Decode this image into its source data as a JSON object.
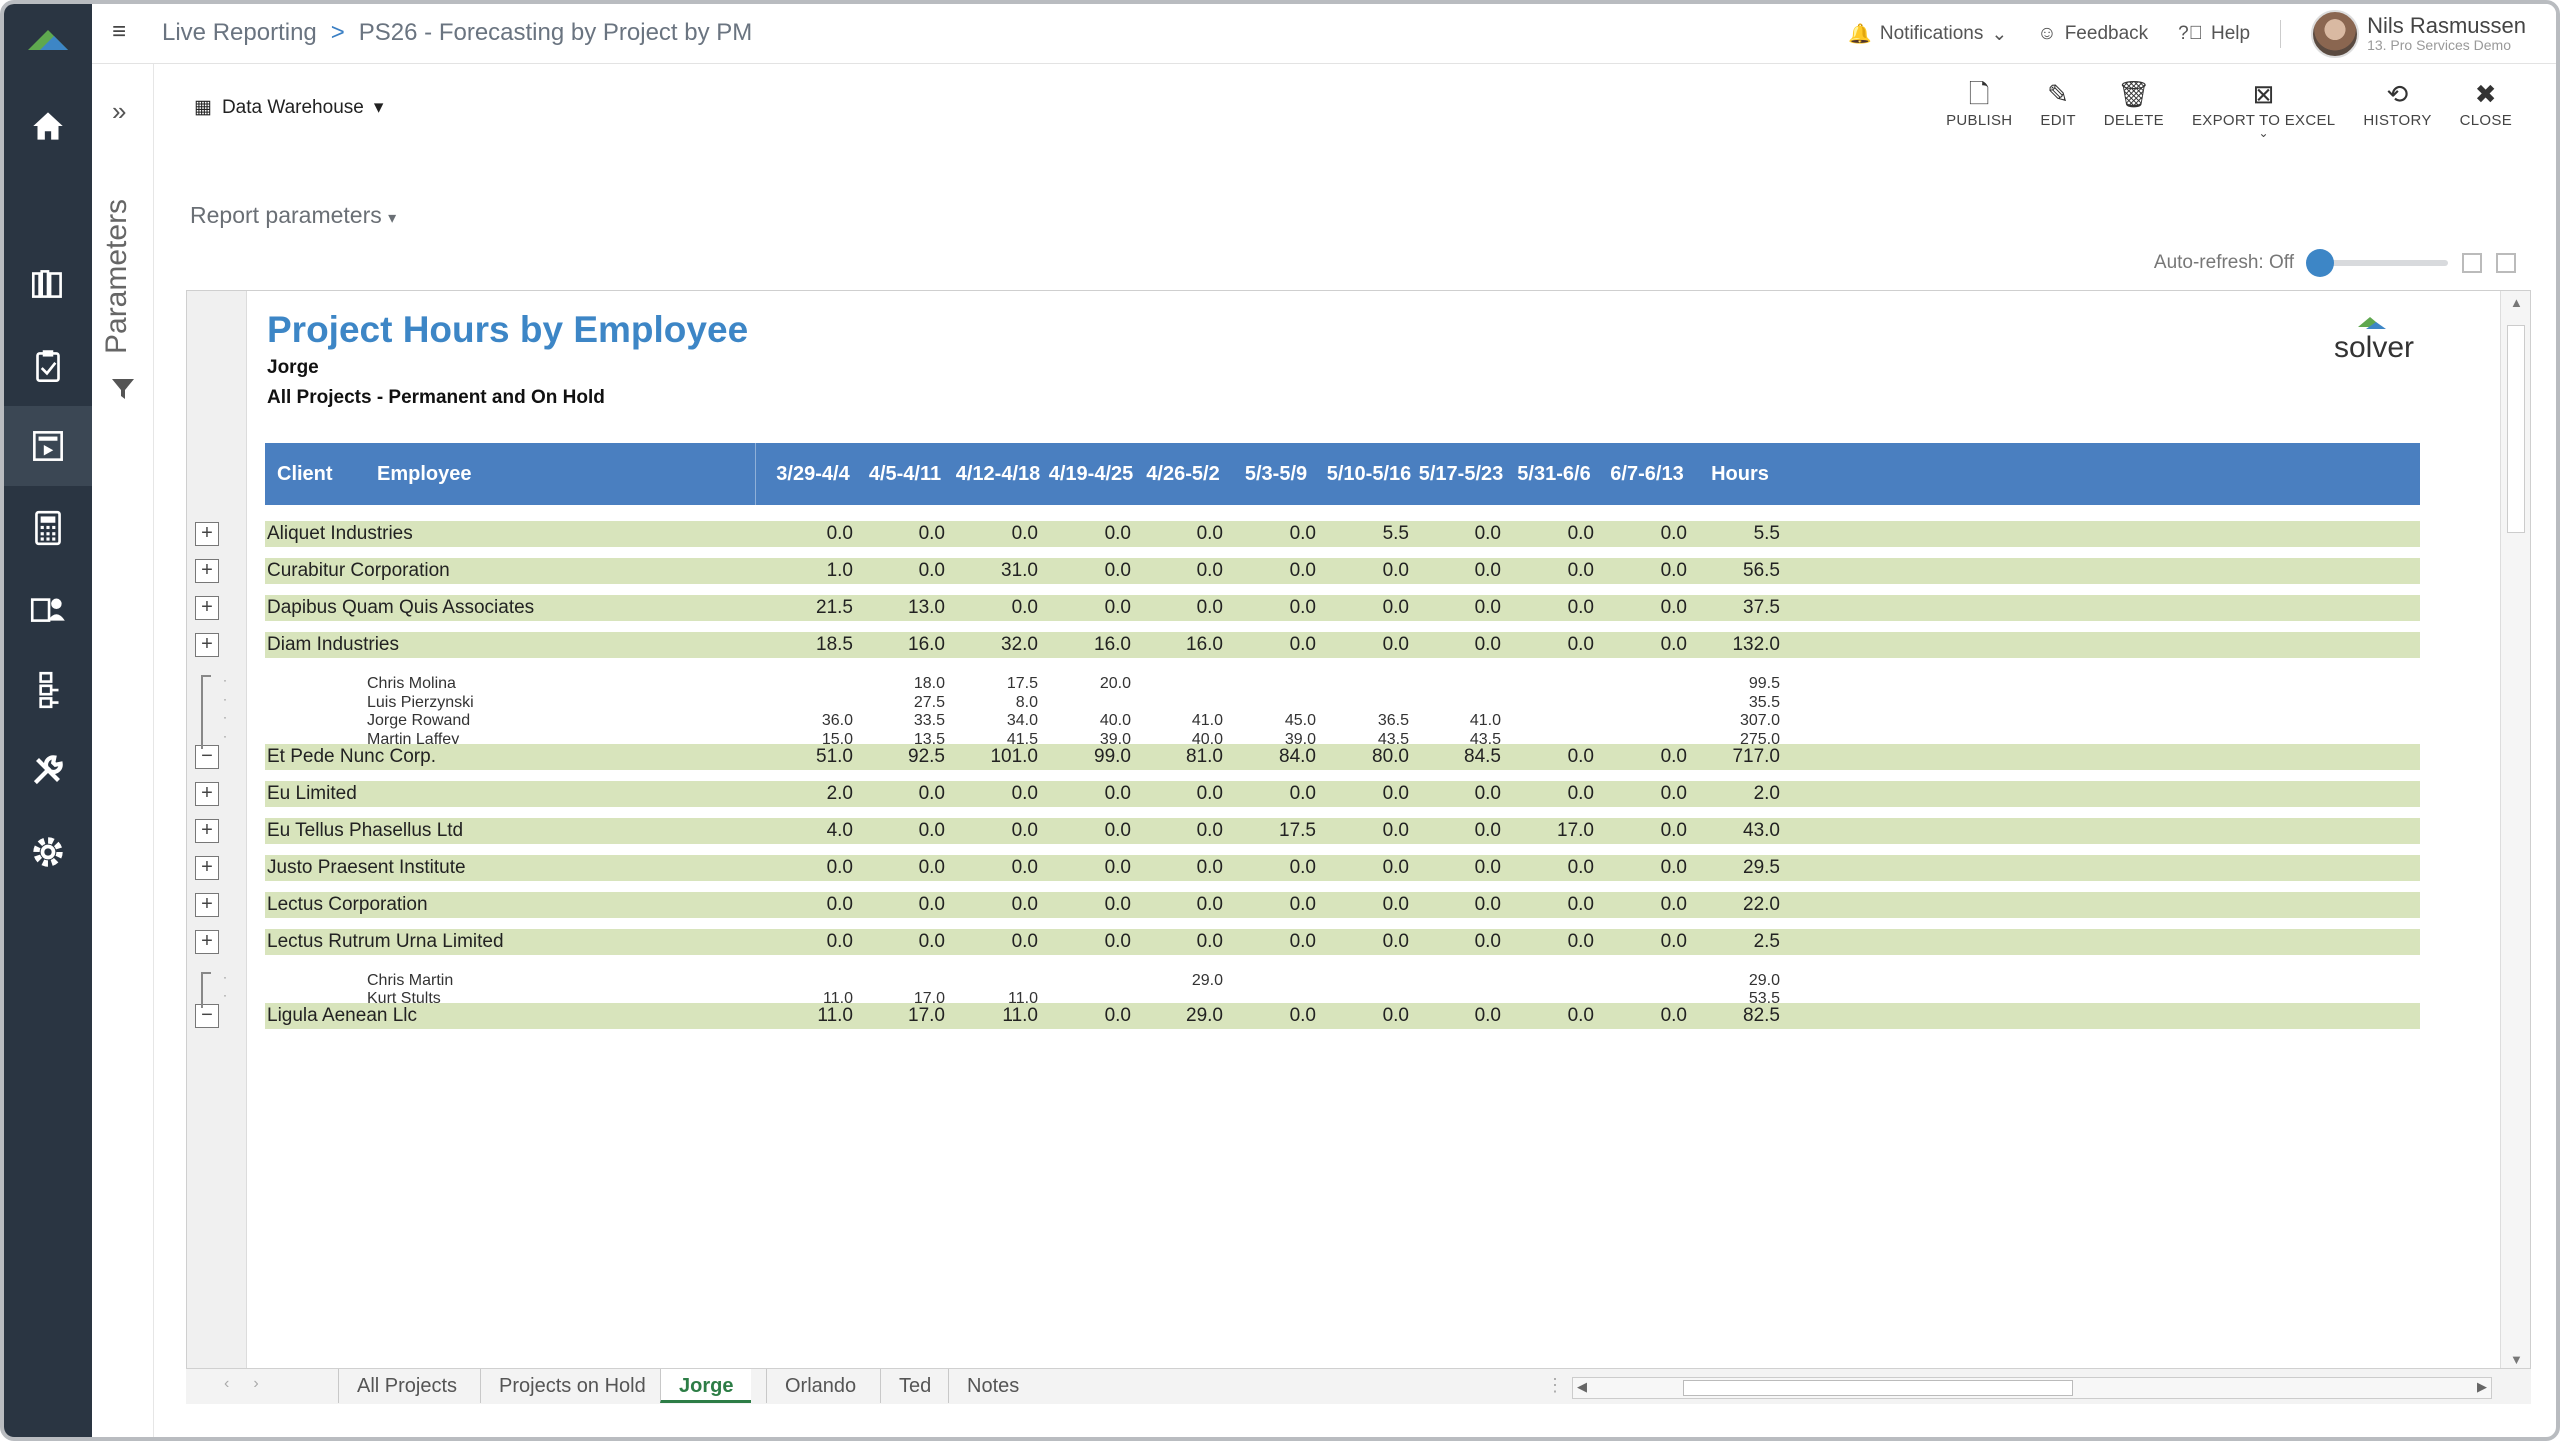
{
  "breadcrumb": {
    "app": "Live Reporting",
    "separator": ">",
    "report": "PS26 - Forecasting by Project by PM"
  },
  "topbar": {
    "notifications": "Notifications",
    "feedback": "Feedback",
    "help": "Help",
    "user_name": "Nils Rasmussen",
    "user_org": "13. Pro Services Demo"
  },
  "toolbar": {
    "source": "Data Warehouse",
    "publish": "PUBLISH",
    "edit": "EDIT",
    "delete": "DELETE",
    "export": "EXPORT TO EXCEL",
    "history": "HISTORY",
    "close": "CLOSE"
  },
  "params": {
    "strip_label": "Parameters",
    "report_parameters": "Report parameters"
  },
  "autorefresh": {
    "label": "Auto-refresh: Off"
  },
  "report": {
    "title": "Project Hours by Employee",
    "subtitle1": "Jorge",
    "subtitle2": "All Projects - Permanent and On Hold",
    "brand": "solver"
  },
  "table": {
    "headers": [
      "Client",
      "Employee",
      "3/29-4/4",
      "4/5-4/11",
      "4/12-4/18",
      "4/19-4/25",
      "4/26-5/2",
      "5/3-5/9",
      "5/10-5/16",
      "5/17-5/23",
      "5/31-6/6",
      "6/7-6/13",
      "Hours"
    ],
    "rows": [
      {
        "type": "client",
        "name": "Aliquet Industries",
        "values": [
          "0.0",
          "0.0",
          "0.0",
          "0.0",
          "0.0",
          "0.0",
          "5.5",
          "0.0",
          "0.0",
          "0.0",
          "5.5"
        ]
      },
      {
        "type": "client",
        "name": "Curabitur Corporation",
        "values": [
          "1.0",
          "0.0",
          "31.0",
          "0.0",
          "0.0",
          "0.0",
          "0.0",
          "0.0",
          "0.0",
          "0.0",
          "56.5"
        ]
      },
      {
        "type": "client",
        "name": "Dapibus Quam Quis Associates",
        "values": [
          "21.5",
          "13.0",
          "0.0",
          "0.0",
          "0.0",
          "0.0",
          "0.0",
          "0.0",
          "0.0",
          "0.0",
          "37.5"
        ]
      },
      {
        "type": "client",
        "name": "Diam Industries",
        "values": [
          "18.5",
          "16.0",
          "32.0",
          "16.0",
          "16.0",
          "0.0",
          "0.0",
          "0.0",
          "0.0",
          "0.0",
          "132.0"
        ]
      },
      {
        "type": "detail",
        "name": "Chris Molina",
        "values": [
          "",
          "18.0",
          "17.5",
          "20.0",
          "",
          "",
          "",
          "",
          "",
          "",
          "99.5"
        ]
      },
      {
        "type": "detail",
        "name": "Luis Pierzynski",
        "values": [
          "",
          "27.5",
          "8.0",
          "",
          "",
          "",
          "",
          "",
          "",
          "",
          "35.5"
        ]
      },
      {
        "type": "detail",
        "name": "Jorge Rowand",
        "values": [
          "36.0",
          "33.5",
          "34.0",
          "40.0",
          "41.0",
          "45.0",
          "36.5",
          "41.0",
          "",
          "",
          "307.0"
        ]
      },
      {
        "type": "detail",
        "name": "Martin Laffey",
        "values": [
          "15.0",
          "13.5",
          "41.5",
          "39.0",
          "40.0",
          "39.0",
          "43.5",
          "43.5",
          "",
          "",
          "275.0"
        ]
      },
      {
        "type": "client",
        "name": "Et Pede Nunc Corp.",
        "values": [
          "51.0",
          "92.5",
          "101.0",
          "99.0",
          "81.0",
          "84.0",
          "80.0",
          "84.5",
          "0.0",
          "0.0",
          "717.0"
        ]
      },
      {
        "type": "client",
        "name": "Eu Limited",
        "values": [
          "2.0",
          "0.0",
          "0.0",
          "0.0",
          "0.0",
          "0.0",
          "0.0",
          "0.0",
          "0.0",
          "0.0",
          "2.0"
        ]
      },
      {
        "type": "client",
        "name": "Eu Tellus Phasellus Ltd",
        "values": [
          "4.0",
          "0.0",
          "0.0",
          "0.0",
          "0.0",
          "17.5",
          "0.0",
          "0.0",
          "17.0",
          "0.0",
          "43.0"
        ]
      },
      {
        "type": "client",
        "name": "Justo Praesent Institute",
        "values": [
          "0.0",
          "0.0",
          "0.0",
          "0.0",
          "0.0",
          "0.0",
          "0.0",
          "0.0",
          "0.0",
          "0.0",
          "29.5"
        ]
      },
      {
        "type": "client",
        "name": "Lectus Corporation",
        "values": [
          "0.0",
          "0.0",
          "0.0",
          "0.0",
          "0.0",
          "0.0",
          "0.0",
          "0.0",
          "0.0",
          "0.0",
          "22.0"
        ]
      },
      {
        "type": "client",
        "name": "Lectus Rutrum Urna Limited",
        "values": [
          "0.0",
          "0.0",
          "0.0",
          "0.0",
          "0.0",
          "0.0",
          "0.0",
          "0.0",
          "0.0",
          "0.0",
          "2.5"
        ]
      },
      {
        "type": "detail",
        "name": "Chris Martin",
        "values": [
          "",
          "",
          "",
          "",
          "29.0",
          "",
          "",
          "",
          "",
          "",
          "29.0"
        ]
      },
      {
        "type": "detail",
        "name": "Kurt Stults",
        "values": [
          "11.0",
          "17.0",
          "11.0",
          "",
          "",
          "",
          "",
          "",
          "",
          "",
          "53.5"
        ]
      },
      {
        "type": "client",
        "name": "Ligula Aenean Llc",
        "values": [
          "11.0",
          "17.0",
          "11.0",
          "0.0",
          "29.0",
          "0.0",
          "0.0",
          "0.0",
          "0.0",
          "0.0",
          "82.5"
        ]
      }
    ]
  },
  "tabs": [
    "All Projects",
    "Projects on Hold",
    "Jorge",
    "Orlando",
    "Ted",
    "Notes"
  ],
  "active_tab": "Jorge",
  "colors": {
    "nav": "#2a3542",
    "header": "#4a7fc0",
    "client_row": "#d8e4bc",
    "accent": "#3d86c6",
    "active_tab": "#2d7d46"
  }
}
